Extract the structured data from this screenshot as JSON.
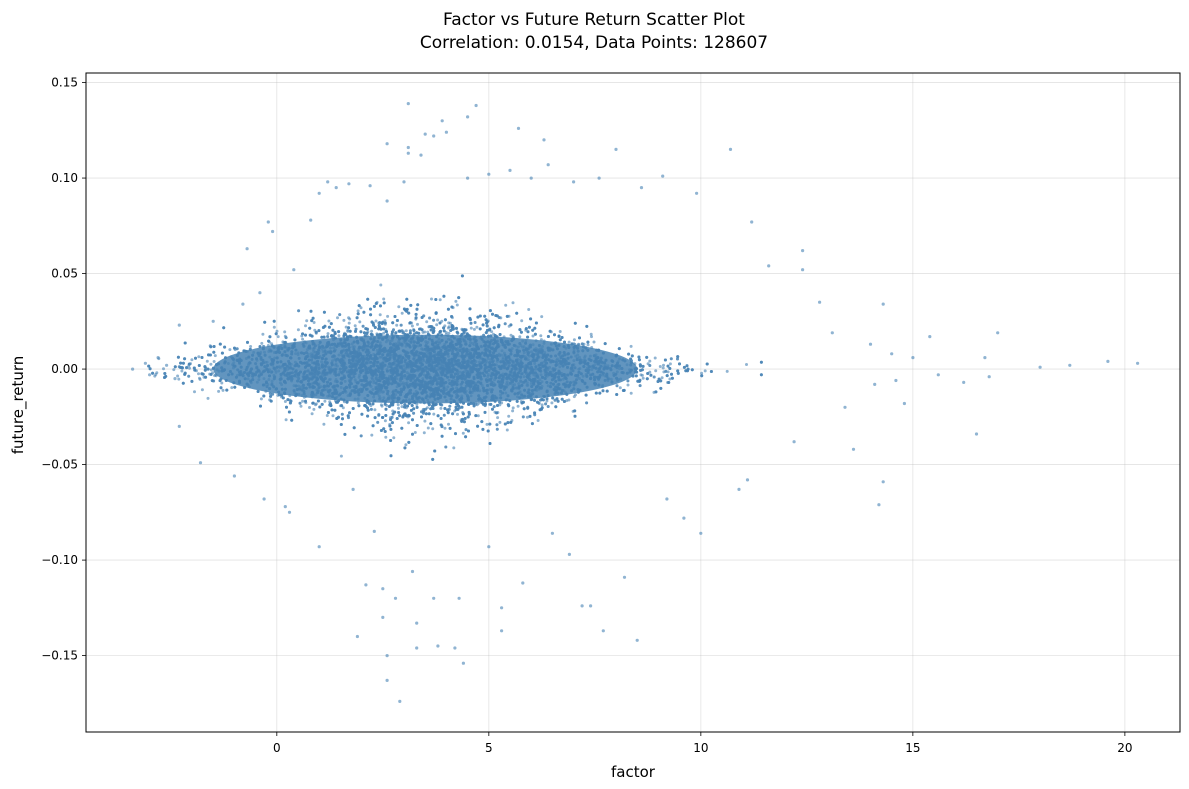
{
  "chart_data": {
    "type": "scatter",
    "title_line1": "Factor vs Future Return Scatter Plot",
    "title_line2": "Correlation: 0.0154, Data Points: 128607",
    "xlabel": "factor",
    "ylabel": "future_return",
    "xlim": [
      -4.5,
      21.3
    ],
    "ylim": [
      -0.19,
      0.155
    ],
    "x_ticks": [
      0,
      5,
      10,
      15,
      20
    ],
    "x_tick_labels": [
      "0",
      "5",
      "10",
      "15",
      "20"
    ],
    "y_ticks": [
      0.15,
      0.1,
      0.05,
      0.0,
      -0.05,
      -0.1,
      -0.15
    ],
    "y_tick_labels": [
      "0.15",
      "0.10",
      "0.05",
      "0.00",
      "−0.05",
      "−0.10",
      "−0.15"
    ],
    "grid": true,
    "marker_color": "#4682b4",
    "marker_alpha": 0.6,
    "correlation": 0.0154,
    "n_points": 128607,
    "points": [
      [
        -3.4,
        0.0
      ],
      [
        -3.1,
        0.003
      ],
      [
        -3.0,
        -0.003
      ],
      [
        -2.8,
        0.006
      ],
      [
        -2.6,
        0.002
      ],
      [
        -2.4,
        -0.005
      ],
      [
        -2.3,
        0.023
      ],
      [
        -2.3,
        -0.03
      ],
      [
        -1.8,
        -0.049
      ],
      [
        -1.5,
        0.025
      ],
      [
        -1.0,
        -0.056
      ],
      [
        -0.8,
        0.034
      ],
      [
        -0.7,
        0.063
      ],
      [
        -0.4,
        0.04
      ],
      [
        -0.3,
        -0.068
      ],
      [
        -0.2,
        0.077
      ],
      [
        -0.1,
        0.072
      ],
      [
        0.2,
        -0.072
      ],
      [
        0.3,
        -0.075
      ],
      [
        0.4,
        0.052
      ],
      [
        0.8,
        0.078
      ],
      [
        1.0,
        0.092
      ],
      [
        1.0,
        -0.093
      ],
      [
        1.2,
        0.098
      ],
      [
        1.4,
        0.095
      ],
      [
        1.7,
        0.097
      ],
      [
        1.8,
        -0.063
      ],
      [
        1.9,
        -0.14
      ],
      [
        2.1,
        -0.113
      ],
      [
        2.2,
        0.096
      ],
      [
        2.3,
        -0.085
      ],
      [
        2.5,
        -0.115
      ],
      [
        2.5,
        -0.13
      ],
      [
        2.6,
        -0.15
      ],
      [
        2.6,
        -0.163
      ],
      [
        2.6,
        0.088
      ],
      [
        2.6,
        0.118
      ],
      [
        2.8,
        -0.12
      ],
      [
        2.9,
        -0.174
      ],
      [
        3.0,
        0.098
      ],
      [
        3.1,
        0.116
      ],
      [
        3.1,
        0.113
      ],
      [
        3.1,
        0.139
      ],
      [
        3.2,
        -0.106
      ],
      [
        3.3,
        -0.146
      ],
      [
        3.3,
        -0.133
      ],
      [
        3.4,
        0.112
      ],
      [
        3.5,
        0.123
      ],
      [
        3.7,
        0.122
      ],
      [
        3.7,
        -0.12
      ],
      [
        3.8,
        -0.145
      ],
      [
        3.9,
        0.13
      ],
      [
        4.0,
        0.124
      ],
      [
        4.2,
        -0.146
      ],
      [
        4.3,
        -0.12
      ],
      [
        4.4,
        -0.154
      ],
      [
        4.5,
        0.132
      ],
      [
        4.5,
        0.1
      ],
      [
        4.7,
        0.138
      ],
      [
        5.0,
        0.102
      ],
      [
        5.0,
        -0.093
      ],
      [
        5.3,
        -0.125
      ],
      [
        5.3,
        -0.137
      ],
      [
        5.5,
        0.104
      ],
      [
        5.7,
        0.126
      ],
      [
        5.8,
        -0.112
      ],
      [
        6.0,
        0.1
      ],
      [
        6.3,
        0.12
      ],
      [
        6.4,
        0.107
      ],
      [
        6.5,
        -0.086
      ],
      [
        6.9,
        -0.097
      ],
      [
        7.0,
        0.098
      ],
      [
        7.2,
        -0.124
      ],
      [
        7.4,
        -0.124
      ],
      [
        7.6,
        0.1
      ],
      [
        7.7,
        -0.137
      ],
      [
        8.0,
        0.115
      ],
      [
        8.2,
        -0.109
      ],
      [
        8.5,
        -0.142
      ],
      [
        8.6,
        0.095
      ],
      [
        9.1,
        0.101
      ],
      [
        9.2,
        -0.068
      ],
      [
        9.6,
        -0.078
      ],
      [
        9.9,
        0.092
      ],
      [
        10.0,
        -0.086
      ],
      [
        10.7,
        0.115
      ],
      [
        10.9,
        -0.063
      ],
      [
        11.1,
        -0.058
      ],
      [
        11.2,
        0.077
      ],
      [
        11.6,
        0.054
      ],
      [
        12.2,
        -0.038
      ],
      [
        12.4,
        0.062
      ],
      [
        12.4,
        0.052
      ],
      [
        12.8,
        0.035
      ],
      [
        13.1,
        0.019
      ],
      [
        13.4,
        -0.02
      ],
      [
        13.6,
        -0.042
      ],
      [
        14.0,
        0.013
      ],
      [
        14.1,
        -0.008
      ],
      [
        14.2,
        -0.071
      ],
      [
        14.3,
        -0.059
      ],
      [
        14.3,
        0.034
      ],
      [
        14.5,
        0.008
      ],
      [
        14.6,
        -0.006
      ],
      [
        14.8,
        -0.018
      ],
      [
        15.0,
        0.006
      ],
      [
        15.4,
        0.017
      ],
      [
        15.6,
        -0.003
      ],
      [
        16.2,
        -0.007
      ],
      [
        16.5,
        -0.034
      ],
      [
        16.7,
        0.006
      ],
      [
        16.8,
        -0.004
      ],
      [
        17.0,
        0.019
      ],
      [
        18.0,
        0.001
      ],
      [
        18.7,
        0.002
      ],
      [
        19.6,
        0.004
      ],
      [
        20.3,
        0.003
      ]
    ]
  }
}
